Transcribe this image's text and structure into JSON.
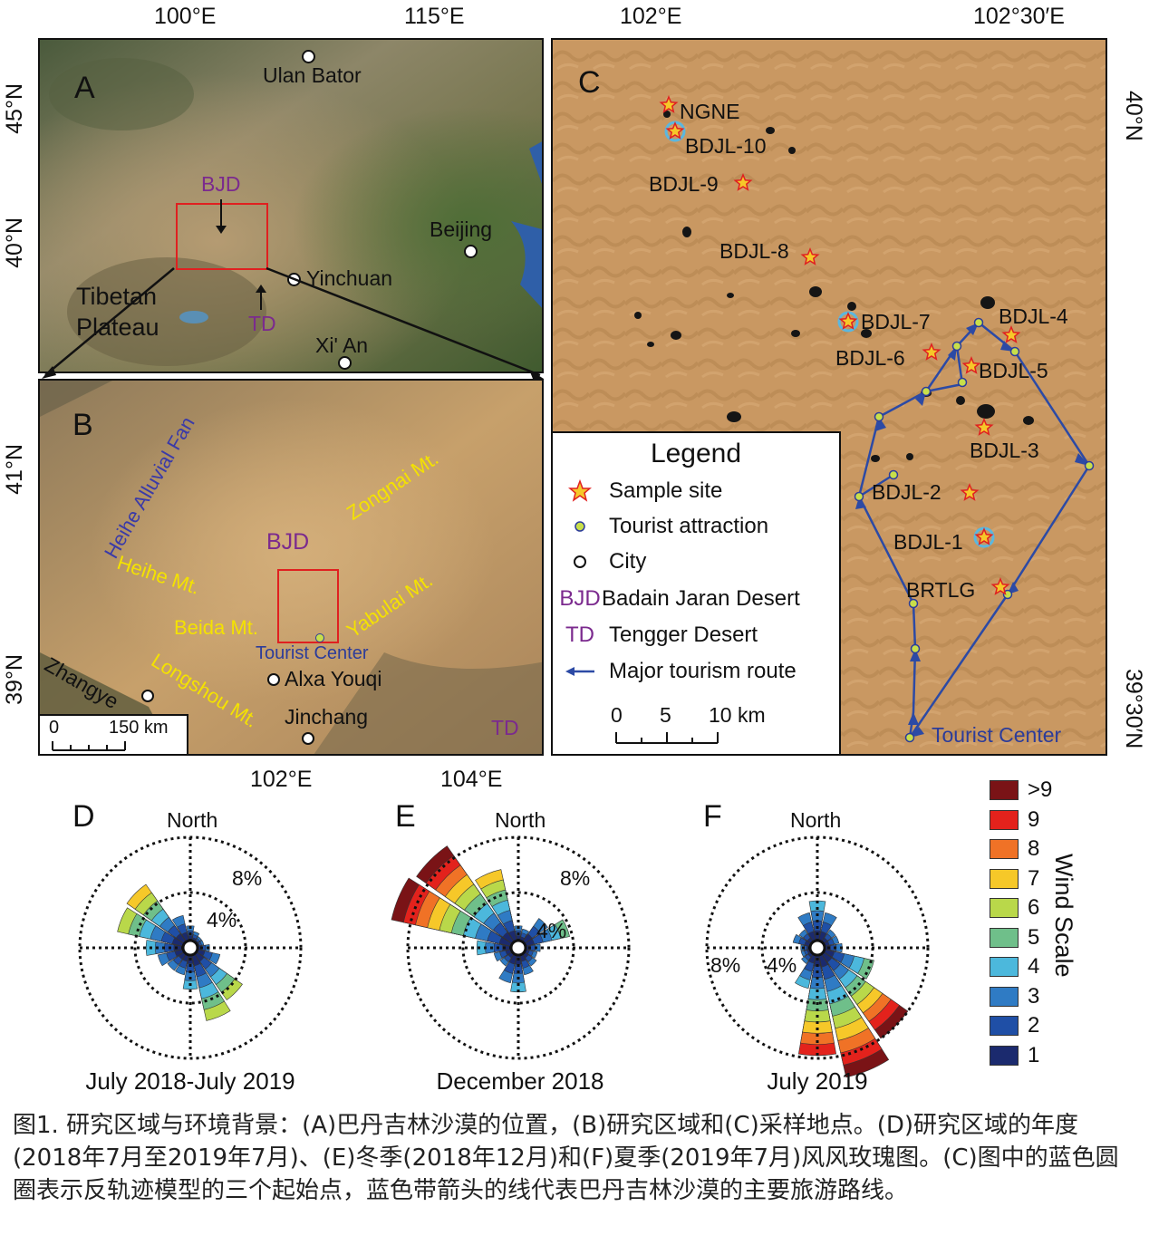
{
  "panelA": {
    "letter": "A",
    "top_ticks": [
      "100°E",
      "115°E"
    ],
    "left_ticks": [
      "45°N",
      "40°N"
    ],
    "cities": [
      {
        "name": "Ulan Bator"
      },
      {
        "name": "Beijing"
      },
      {
        "name": "Yinchuan"
      },
      {
        "name": "Xi' An"
      }
    ],
    "bjd_label": "BJD",
    "td_label": "TD",
    "region_label_line1": "Tibetan",
    "region_label_line2": "Plateau"
  },
  "panelB": {
    "letter": "B",
    "left_ticks": [
      "41°N",
      "39°N"
    ],
    "bottom_ticks": [
      "102°E",
      "104°E"
    ],
    "blue_label": "Heihe Alluvial Fan",
    "mountains": [
      "Zongnai Mt.",
      "Heihe Mt.",
      "Yabulai Mt.",
      "Beida Mt.",
      "Longshou Mt."
    ],
    "bjd_label": "BJD",
    "td_label": "TD",
    "tourist_center": "Tourist Center",
    "cities": [
      "Alxa Youqi",
      "Zhangye",
      "Jinchang"
    ],
    "scalebar": {
      "start": "0",
      "end": "150 km"
    }
  },
  "panelC": {
    "letter": "C",
    "top_ticks": [
      "102°E",
      "102°30′E"
    ],
    "right_ticks": [
      "40°N",
      "39°30′N"
    ],
    "sites": [
      "NGNE",
      "BDJL-10",
      "BDJL-9",
      "BDJL-8",
      "BDJL-7",
      "BDJL-6",
      "BDJL-5",
      "BDJL-4",
      "BDJL-3",
      "BDJL-2",
      "BDJL-1",
      "BRTLG"
    ],
    "tourist_center": "Tourist Center",
    "legend": {
      "title": "Legend",
      "items": [
        {
          "sym": "BJD",
          "label": "Badain Jaran Desert"
        },
        {
          "sym": "TD",
          "label": "Tengger Desert"
        }
      ],
      "sample_site": "Sample site",
      "tourist_attraction": "Tourist attraction",
      "city": "City",
      "route": "Major tourism route",
      "scale": [
        "0",
        "5",
        "10 km"
      ]
    }
  },
  "roses": [
    {
      "letter": "D",
      "north": "North",
      "rings": [
        "4%",
        "8%"
      ],
      "title": "July 2018-July 2019"
    },
    {
      "letter": "E",
      "north": "North",
      "rings": [
        "4%",
        "8%"
      ],
      "title": "December 2018"
    },
    {
      "letter": "F",
      "north": "North",
      "rings": [
        "4%",
        "8%"
      ],
      "title": "July 2019"
    }
  ],
  "wind_scale": {
    "title": "Wind Scale",
    "levels": [
      {
        "label": ">9",
        "color": "#7a1316"
      },
      {
        "label": "9",
        "color": "#e3221c"
      },
      {
        "label": "8",
        "color": "#f07226"
      },
      {
        "label": "7",
        "color": "#f6c829"
      },
      {
        "label": "6",
        "color": "#b9d84a"
      },
      {
        "label": "5",
        "color": "#6fbf8a"
      },
      {
        "label": "4",
        "color": "#4cb8dc"
      },
      {
        "label": "3",
        "color": "#2f7bc4"
      },
      {
        "label": "2",
        "color": "#1f4fa6"
      },
      {
        "label": "1",
        "color": "#1b2a6e"
      }
    ]
  },
  "caption": "图1. 研究区域与环境背景：(A)巴丹吉林沙漠的位置，(B)研究区域和(C)采样地点。(D)研究区域的年度(2018年7月至2019年7月)、(E)冬季(2018年12月)和(F)夏季(2019年7月)风风玫瑰图。(C)图中的蓝色圆圈表示反轨迹模型的三个起始点，蓝色带箭头的线代表巴丹吉林沙漠的主要旅游路线。"
}
